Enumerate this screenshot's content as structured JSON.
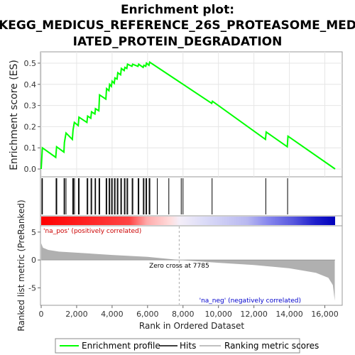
{
  "chart_data": {
    "type": "line",
    "title_lines": [
      "Enrichment plot:",
      "KEGG_MEDICUS_REFERENCE_26S_PROTEASOME_MED",
      "IATED_PROTEIN_DEGRADATION"
    ],
    "es_panel": {
      "ylabel": "Enrichment score (ES)",
      "ylim": [
        -0.02,
        0.53
      ],
      "yticks": [
        0.0,
        0.1,
        0.2,
        0.3,
        0.4,
        0.5
      ],
      "ytick_labels": [
        "0.0",
        "0.1",
        "0.2",
        "0.3",
        "0.4",
        "0.5"
      ],
      "series_color": "#00ff00",
      "points": [
        [
          0,
          0.0
        ],
        [
          70,
          0.1
        ],
        [
          820,
          0.055
        ],
        [
          870,
          0.105
        ],
        [
          1280,
          0.08
        ],
        [
          1310,
          0.125
        ],
        [
          1400,
          0.17
        ],
        [
          1760,
          0.14
        ],
        [
          1800,
          0.185
        ],
        [
          1870,
          0.22
        ],
        [
          2090,
          0.205
        ],
        [
          2130,
          0.245
        ],
        [
          2580,
          0.22
        ],
        [
          2620,
          0.25
        ],
        [
          2800,
          0.24
        ],
        [
          2840,
          0.27
        ],
        [
          3030,
          0.26
        ],
        [
          3060,
          0.285
        ],
        [
          3250,
          0.275
        ],
        [
          3290,
          0.35
        ],
        [
          3650,
          0.33
        ],
        [
          3690,
          0.38
        ],
        [
          3820,
          0.37
        ],
        [
          3860,
          0.4
        ],
        [
          3960,
          0.39
        ],
        [
          4000,
          0.415
        ],
        [
          4120,
          0.405
        ],
        [
          4160,
          0.43
        ],
        [
          4280,
          0.425
        ],
        [
          4320,
          0.455
        ],
        [
          4480,
          0.445
        ],
        [
          4520,
          0.475
        ],
        [
          4680,
          0.465
        ],
        [
          4720,
          0.48
        ],
        [
          4830,
          0.475
        ],
        [
          4870,
          0.495
        ],
        [
          5120,
          0.485
        ],
        [
          5160,
          0.495
        ],
        [
          5460,
          0.485
        ],
        [
          5500,
          0.495
        ],
        [
          5750,
          0.48
        ],
        [
          5790,
          0.49
        ],
        [
          5900,
          0.485
        ],
        [
          5940,
          0.5
        ],
        [
          6080,
          0.49
        ],
        [
          6120,
          0.505
        ],
        [
          9620,
          0.31
        ],
        [
          9660,
          0.32
        ],
        [
          12650,
          0.14
        ],
        [
          12690,
          0.175
        ],
        [
          13880,
          0.105
        ],
        [
          13920,
          0.155
        ],
        [
          16580,
          0.0
        ]
      ]
    },
    "hits": [
      40,
      70,
      840,
      880,
      1290,
      1320,
      1400,
      1780,
      1820,
      1880,
      2100,
      2140,
      2590,
      2630,
      2810,
      2850,
      3040,
      3070,
      3260,
      3300,
      3660,
      3700,
      3830,
      3870,
      3970,
      4010,
      4130,
      4170,
      4290,
      4330,
      4490,
      4530,
      4690,
      4730,
      4840,
      4880,
      5130,
      5170,
      5470,
      5510,
      5760,
      5800,
      5910,
      5950,
      6090,
      6130,
      6550,
      7200,
      7900,
      8000,
      9640,
      12670,
      13900
    ],
    "ranked_panel": {
      "ylabel": "Ranked list metric (PreRanked)",
      "ylim": [
        -8,
        6
      ],
      "yticks": [
        5,
        0,
        -5
      ],
      "ytick_labels": [
        "5",
        "0",
        "-5"
      ],
      "profile": [
        [
          0,
          3.0
        ],
        [
          100,
          2.2
        ],
        [
          400,
          1.8
        ],
        [
          1000,
          1.5
        ],
        [
          2000,
          1.3
        ],
        [
          4000,
          0.9
        ],
        [
          6000,
          0.55
        ],
        [
          7785,
          0.0
        ],
        [
          10000,
          -0.5
        ],
        [
          12000,
          -0.9
        ],
        [
          14000,
          -1.5
        ],
        [
          15500,
          -2.3
        ],
        [
          16200,
          -3.2
        ],
        [
          16450,
          -4.5
        ],
        [
          16560,
          -7.3
        ]
      ],
      "zero_cross_label": "Zero cross at 7785",
      "zero_cross": 7785,
      "pos_label": "'na_pos' (positively correlated)",
      "neg_label": "'na_neg' (negatively correlated)"
    },
    "xlabel": "Rank in Ordered Dataset",
    "xlim": [
      0,
      16580
    ],
    "xticks": [
      0,
      2000,
      4000,
      6000,
      8000,
      10000,
      12000,
      14000,
      16000
    ],
    "xtick_labels": [
      "0",
      "2,000",
      "4,000",
      "6,000",
      "8,000",
      "10,000",
      "12,000",
      "14,000",
      "16,000"
    ],
    "legend": {
      "placement": "bottom",
      "entries": [
        {
          "label": "Enrichment profile",
          "color": "#00ff00",
          "kind": "line"
        },
        {
          "label": "Hits",
          "color": "#000000",
          "kind": "line"
        },
        {
          "label": "Ranking metric scores",
          "color": "#c0c0c0",
          "kind": "line"
        }
      ]
    },
    "colors": {
      "pos_label": "#cc0000",
      "neg_label": "#0000cc",
      "metric_fill": "#b0b0b0"
    }
  }
}
